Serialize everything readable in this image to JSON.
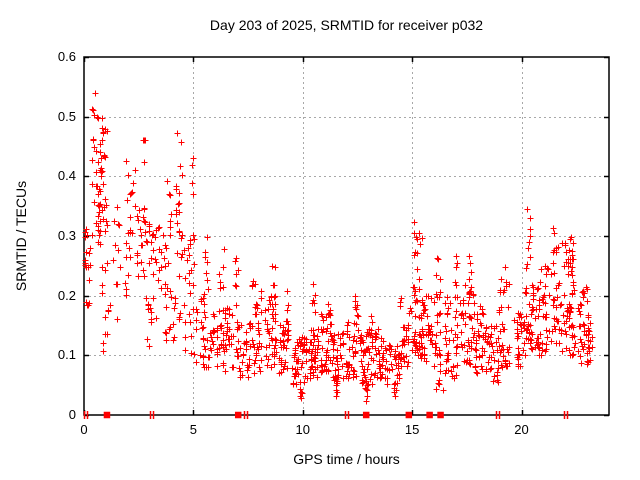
{
  "chart_data": {
    "type": "scatter",
    "title": "Day 203 of 2025, SRMTID for receiver p032",
    "xlabel": "GPS time / hours",
    "ylabel": "SRMTID / TECUs",
    "xlim": [
      0,
      24
    ],
    "ylim": [
      0,
      0.6
    ],
    "xticks": [
      0,
      5,
      10,
      15,
      20
    ],
    "yticks": [
      0,
      0.1,
      0.2,
      0.3,
      0.4,
      0.5,
      0.6
    ],
    "grid": true,
    "legend": "none",
    "marker": "plus",
    "marker_color": "#ff0000",
    "grid_color": "#a8a8a8",
    "axis_color": "#000000",
    "background": "#ffffff",
    "seed": 42,
    "point_clusters_format": [
      "hour_center",
      "hour_halfwidth",
      "y_min",
      "y_max",
      "count",
      "low_bias_power"
    ],
    "point_clusters": [
      [
        0.15,
        0.15,
        0.18,
        0.33,
        18,
        1
      ],
      [
        0.45,
        0.08,
        0.42,
        0.56,
        8,
        1
      ],
      [
        0.5,
        0.15,
        0.3,
        0.42,
        10,
        1
      ],
      [
        0.8,
        0.25,
        0.28,
        0.5,
        45,
        1
      ],
      [
        0.95,
        0.2,
        0.1,
        0.27,
        12,
        1
      ],
      [
        1.4,
        0.25,
        0.15,
        0.35,
        12,
        1
      ],
      [
        2.1,
        0.25,
        0.2,
        0.44,
        22,
        1
      ],
      [
        2.7,
        0.3,
        0.22,
        0.35,
        28,
        1
      ],
      [
        2.75,
        0.1,
        0.4,
        0.47,
        4,
        1
      ],
      [
        2.9,
        0.15,
        0.1,
        0.2,
        6,
        1
      ],
      [
        3.3,
        0.3,
        0.15,
        0.33,
        25,
        1
      ],
      [
        3.8,
        0.2,
        0.25,
        0.4,
        12,
        1
      ],
      [
        3.9,
        0.3,
        0.12,
        0.25,
        18,
        1
      ],
      [
        4.35,
        0.15,
        0.15,
        0.48,
        25,
        1
      ],
      [
        4.8,
        0.25,
        0.1,
        0.3,
        25,
        1.3
      ],
      [
        4.95,
        0.05,
        0.3,
        0.45,
        5,
        1
      ],
      [
        5.4,
        0.3,
        0.08,
        0.22,
        30,
        1.2
      ],
      [
        5.55,
        0.08,
        0.2,
        0.31,
        6,
        1
      ],
      [
        5.9,
        0.2,
        0.08,
        0.18,
        18,
        1
      ],
      [
        6.3,
        0.15,
        0.1,
        0.32,
        20,
        1.4
      ],
      [
        6.6,
        0.25,
        0.07,
        0.18,
        25,
        1
      ],
      [
        7.0,
        0.1,
        0.1,
        0.27,
        10,
        1.3
      ],
      [
        7.3,
        0.3,
        0.06,
        0.16,
        35,
        1
      ],
      [
        7.9,
        0.25,
        0.07,
        0.23,
        35,
        1.5
      ],
      [
        8.5,
        0.3,
        0.08,
        0.2,
        35,
        1.3
      ],
      [
        8.65,
        0.1,
        0.18,
        0.25,
        8,
        1
      ],
      [
        9.1,
        0.25,
        0.07,
        0.16,
        30,
        1
      ],
      [
        9.3,
        0.05,
        0.12,
        0.21,
        6,
        1
      ],
      [
        9.85,
        0.35,
        0.05,
        0.13,
        45,
        1
      ],
      [
        9.9,
        0.05,
        0.025,
        0.06,
        5,
        1
      ],
      [
        10.5,
        0.25,
        0.06,
        0.15,
        35,
        1
      ],
      [
        10.5,
        0.06,
        0.15,
        0.22,
        6,
        1
      ],
      [
        11.1,
        0.3,
        0.07,
        0.17,
        40,
        1.2
      ],
      [
        11.2,
        0.05,
        0.16,
        0.2,
        5,
        1
      ],
      [
        11.6,
        0.25,
        0.05,
        0.14,
        30,
        1
      ],
      [
        11.55,
        0.05,
        0.02,
        0.06,
        5,
        1
      ],
      [
        12.2,
        0.25,
        0.06,
        0.16,
        35,
        1.2
      ],
      [
        12.45,
        0.08,
        0.13,
        0.2,
        8,
        1
      ],
      [
        12.9,
        0.3,
        0.05,
        0.14,
        40,
        1
      ],
      [
        12.9,
        0.06,
        0.02,
        0.05,
        6,
        1
      ],
      [
        13.1,
        0.06,
        0.13,
        0.18,
        5,
        1
      ],
      [
        13.5,
        0.3,
        0.06,
        0.15,
        35,
        1.2
      ],
      [
        14.1,
        0.3,
        0.05,
        0.12,
        30,
        1
      ],
      [
        14.2,
        0.05,
        0.025,
        0.05,
        4,
        1
      ],
      [
        14.7,
        0.3,
        0.08,
        0.2,
        30,
        1.4
      ],
      [
        15.25,
        0.2,
        0.1,
        0.33,
        45,
        1.6
      ],
      [
        15.65,
        0.25,
        0.09,
        0.2,
        35,
        1.2
      ],
      [
        16.1,
        0.2,
        0.1,
        0.27,
        25,
        1.5
      ],
      [
        16.2,
        0.2,
        0.04,
        0.09,
        8,
        1
      ],
      [
        16.8,
        0.3,
        0.06,
        0.2,
        35,
        1.2
      ],
      [
        17.0,
        0.08,
        0.15,
        0.27,
        8,
        1
      ],
      [
        17.5,
        0.3,
        0.08,
        0.22,
        40,
        1.2
      ],
      [
        17.65,
        0.08,
        0.2,
        0.27,
        6,
        1
      ],
      [
        18.1,
        0.3,
        0.07,
        0.19,
        38,
        1.2
      ],
      [
        18.7,
        0.3,
        0.05,
        0.15,
        32,
        1
      ],
      [
        19.2,
        0.25,
        0.08,
        0.25,
        35,
        1.5
      ],
      [
        19.9,
        0.25,
        0.08,
        0.18,
        28,
        1.2
      ],
      [
        20.3,
        0.12,
        0.12,
        0.35,
        28,
        1.4
      ],
      [
        20.6,
        0.2,
        0.1,
        0.22,
        25,
        1
      ],
      [
        21.0,
        0.25,
        0.1,
        0.25,
        35,
        1.3
      ],
      [
        21.55,
        0.2,
        0.12,
        0.32,
        30,
        1.4
      ],
      [
        22.1,
        0.35,
        0.1,
        0.3,
        55,
        1.3
      ],
      [
        22.3,
        0.1,
        0.25,
        0.31,
        8,
        1
      ],
      [
        22.8,
        0.25,
        0.08,
        0.22,
        35,
        1.3
      ],
      [
        23.1,
        0.15,
        0.08,
        0.16,
        12,
        1
      ]
    ],
    "baseline_squares_hours": [
      1.05,
      7.05,
      12.9,
      14.85,
      15.8,
      16.3
    ],
    "baseline_tick_hours": [
      0.07,
      3.1,
      7.4,
      12.0,
      18.9,
      22.0
    ]
  }
}
